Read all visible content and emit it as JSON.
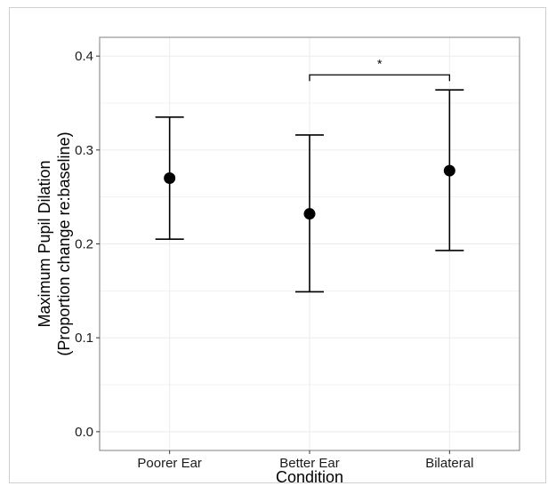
{
  "chart_data": {
    "type": "scatter",
    "categories": [
      "Poorer Ear",
      "Better Ear",
      "Bilateral"
    ],
    "values": [
      0.27,
      0.232,
      0.278
    ],
    "error_low": [
      0.205,
      0.149,
      0.193
    ],
    "error_high": [
      0.335,
      0.316,
      0.364
    ],
    "xlabel": "Condition",
    "ylabel_line1": "Maximum Pupil Dilation",
    "ylabel_line2": "(Proportion change re:baseline)",
    "ylim": [
      -0.02,
      0.42
    ],
    "yticks": [
      0.0,
      0.1,
      0.2,
      0.3,
      0.4
    ],
    "ytick_labels": [
      "0.0",
      "0.1",
      "0.2",
      "0.3",
      "0.4"
    ],
    "grid": true,
    "significance": {
      "from": "Better Ear",
      "to": "Bilateral",
      "y": 0.38,
      "label": "*"
    },
    "colors": {
      "point": "#000000",
      "grid": "#ebebeb",
      "panel_border": "#7f7f7f"
    }
  }
}
